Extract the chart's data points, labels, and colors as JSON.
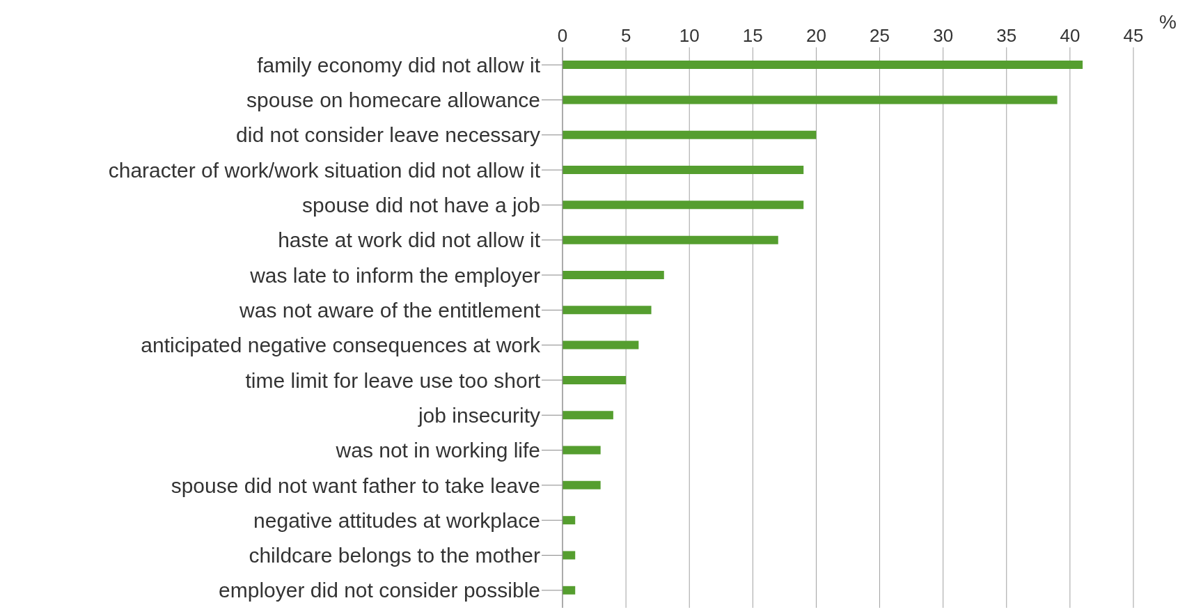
{
  "chart_data": {
    "type": "bar",
    "orientation": "horizontal",
    "xlabel": "%",
    "categories": [
      "family economy did not allow it",
      "spouse on homecare allowance",
      "did not consider leave necessary",
      "character of work/work situation did not allow it",
      "spouse did not have a job",
      "haste at work did not allow it",
      "was late to inform the employer",
      "was not aware of the entitlement",
      "anticipated negative consequences at work",
      "time limit for leave use too short",
      "job insecurity",
      "was not in working life",
      "spouse did not want father to take leave",
      "negative attitudes at workplace",
      "childcare belongs to the mother",
      "employer did not consider possible"
    ],
    "values": [
      41,
      39,
      20,
      19,
      19,
      17,
      8,
      7,
      6,
      5,
      4,
      3,
      3,
      1,
      1,
      1
    ],
    "color": "#559e2f",
    "xlim": [
      0,
      45
    ],
    "xticks": [
      0,
      5,
      10,
      15,
      20,
      25,
      30,
      35,
      40,
      45
    ],
    "grid": "x"
  }
}
